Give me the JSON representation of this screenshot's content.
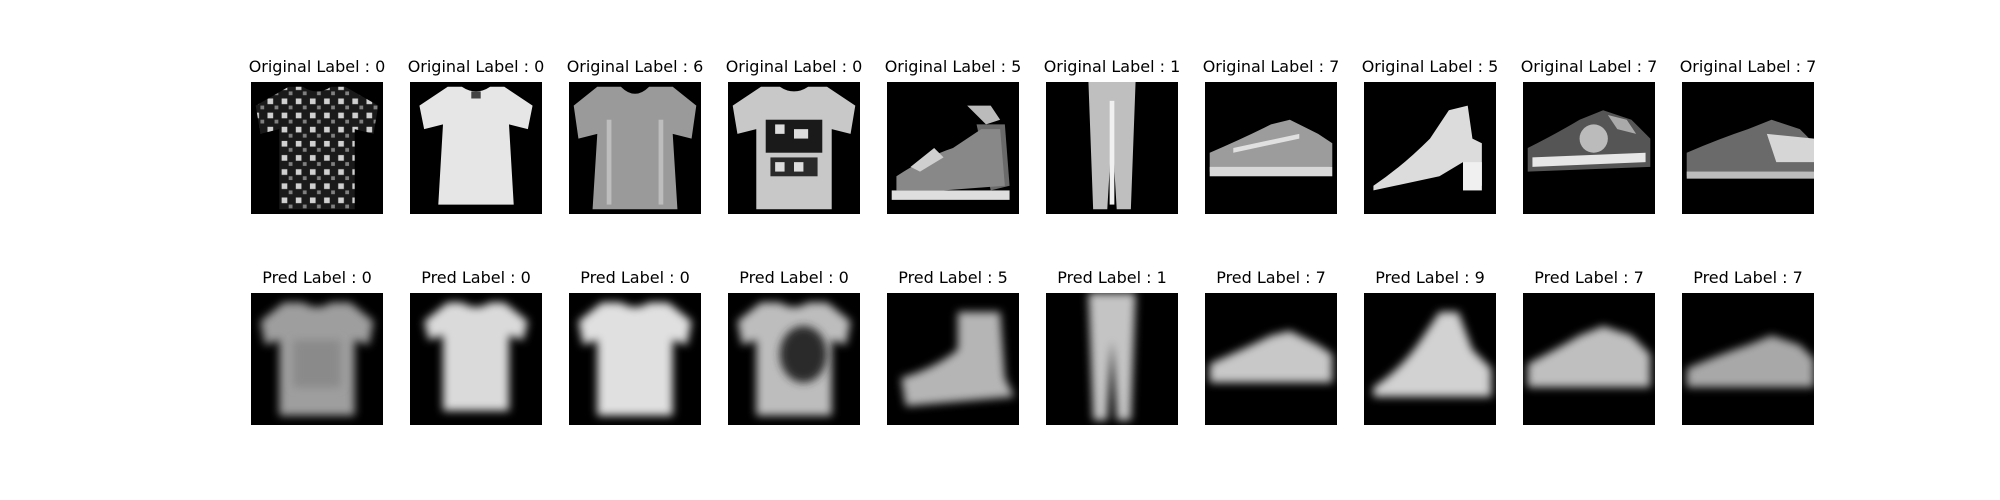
{
  "figure": {
    "original_row": [
      {
        "label": "Original Label : 0",
        "item": "patterned-tshirt"
      },
      {
        "label": "Original Label : 0",
        "item": "white-tshirt"
      },
      {
        "label": "Original Label : 6",
        "item": "gray-shirt"
      },
      {
        "label": "Original Label : 0",
        "item": "graphic-tshirt"
      },
      {
        "label": "Original Label : 5",
        "item": "wedge-sandal"
      },
      {
        "label": "Original Label : 1",
        "item": "trouser"
      },
      {
        "label": "Original Label : 7",
        "item": "sneaker"
      },
      {
        "label": "Original Label : 5",
        "item": "block-heel-sandal"
      },
      {
        "label": "Original Label : 7",
        "item": "sneaker-dark"
      },
      {
        "label": "Original Label : 7",
        "item": "sneaker-side"
      }
    ],
    "pred_row": [
      {
        "label": "Pred Label : 0",
        "item": "blurry-tshirt"
      },
      {
        "label": "Pred Label : 0",
        "item": "blurry-tshirt"
      },
      {
        "label": "Pred Label : 0",
        "item": "blurry-tshirt"
      },
      {
        "label": "Pred Label : 0",
        "item": "blurry-tshirt-dark"
      },
      {
        "label": "Pred Label : 5",
        "item": "blurry-shoe"
      },
      {
        "label": "Pred Label : 1",
        "item": "blurry-trouser"
      },
      {
        "label": "Pred Label : 7",
        "item": "blurry-sneaker"
      },
      {
        "label": "Pred Label : 9",
        "item": "blurry-boot"
      },
      {
        "label": "Pred Label : 7",
        "item": "blurry-sneaker"
      },
      {
        "label": "Pred Label : 7",
        "item": "blurry-sneaker"
      }
    ]
  }
}
